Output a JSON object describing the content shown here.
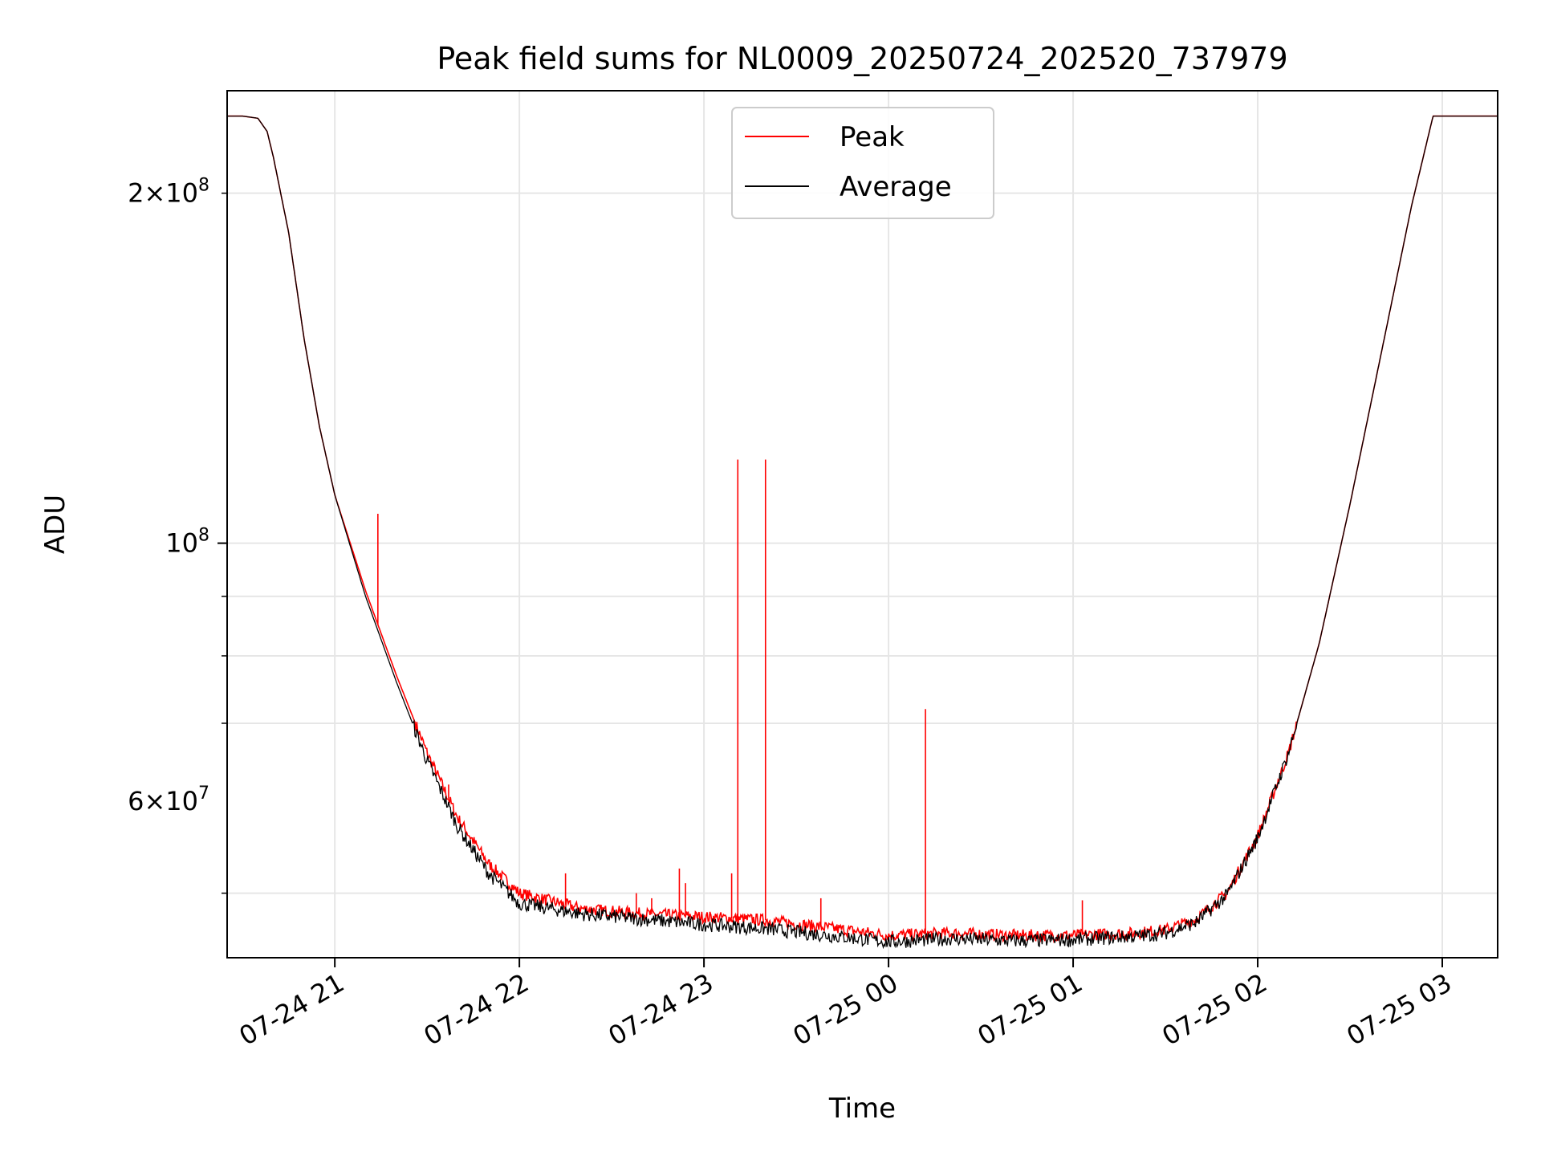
{
  "chart_data": {
    "type": "line",
    "title": "Peak field sums for NL0009_20250724_202520_737979",
    "xlabel": "Time",
    "ylabel": "ADU",
    "y_scale": "log",
    "ylim": [
      44000000,
      245000000
    ],
    "xlim": [
      "2025-07-24 20:25",
      "2025-07-25 03:18"
    ],
    "grid": true,
    "legend_position": "upper center",
    "x_ticks": [
      {
        "value": "2025-07-24 21:00",
        "label": "07-24 21"
      },
      {
        "value": "2025-07-24 22:00",
        "label": "07-24 22"
      },
      {
        "value": "2025-07-24 23:00",
        "label": "07-24 23"
      },
      {
        "value": "2025-07-25 00:00",
        "label": "07-25 00"
      },
      {
        "value": "2025-07-25 01:00",
        "label": "07-25 01"
      },
      {
        "value": "2025-07-25 02:00",
        "label": "07-25 02"
      },
      {
        "value": "2025-07-25 03:00",
        "label": "07-25 03"
      }
    ],
    "y_major_ticks": [
      {
        "value": 100000000,
        "mantissa": "",
        "base": "10",
        "exponent": "8"
      }
    ],
    "y_minor_labeled_ticks": [
      {
        "value": 60000000,
        "mantissa": "6",
        "base": "10",
        "exponent": "7"
      },
      {
        "value": 200000000,
        "mantissa": "2",
        "base": "10",
        "exponent": "8"
      }
    ],
    "y_minor_ticks": [
      50000000,
      70000000,
      80000000,
      90000000,
      200000000
    ],
    "series": [
      {
        "name": "Peak",
        "color": "#ff0000",
        "x": [
          "2025-07-24 20:25",
          "2025-07-24 20:30",
          "2025-07-24 20:35",
          "2025-07-24 20:38",
          "2025-07-24 20:40",
          "2025-07-24 20:45",
          "2025-07-24 20:50",
          "2025-07-24 20:55",
          "2025-07-24 21:00",
          "2025-07-24 21:10",
          "2025-07-24 21:20",
          "2025-07-24 21:30",
          "2025-07-24 21:40",
          "2025-07-24 21:50",
          "2025-07-24 22:00",
          "2025-07-24 22:20",
          "2025-07-24 22:40",
          "2025-07-24 23:00",
          "2025-07-24 23:20",
          "2025-07-24 23:40",
          "2025-07-25 00:00",
          "2025-07-25 00:20",
          "2025-07-25 00:40",
          "2025-07-25 01:00",
          "2025-07-25 01:20",
          "2025-07-25 01:30",
          "2025-07-25 01:40",
          "2025-07-25 01:50",
          "2025-07-25 02:00",
          "2025-07-25 02:10",
          "2025-07-25 02:20",
          "2025-07-25 02:30",
          "2025-07-25 02:40",
          "2025-07-25 02:50",
          "2025-07-25 02:57",
          "2025-07-25 03:18"
        ],
        "y": [
          233000000,
          233000000,
          232000000,
          226000000,
          215000000,
          185000000,
          150000000,
          126000000,
          110000000,
          91000000,
          77000000,
          66000000,
          58000000,
          53000000,
          50000000,
          48500000,
          48000000,
          47700000,
          47400000,
          46700000,
          46000000,
          46200000,
          46000000,
          46000000,
          46200000,
          46500000,
          47500000,
          50000000,
          56000000,
          66000000,
          82000000,
          108000000,
          145000000,
          195000000,
          233000000,
          233000000
        ]
      },
      {
        "name": "Average",
        "color": "#000000",
        "x": [
          "2025-07-24 20:25",
          "2025-07-24 20:30",
          "2025-07-24 20:35",
          "2025-07-24 20:38",
          "2025-07-24 20:40",
          "2025-07-24 20:45",
          "2025-07-24 20:50",
          "2025-07-24 20:55",
          "2025-07-24 21:00",
          "2025-07-24 21:10",
          "2025-07-24 21:20",
          "2025-07-24 21:30",
          "2025-07-24 21:40",
          "2025-07-24 21:50",
          "2025-07-24 22:00",
          "2025-07-24 22:20",
          "2025-07-24 22:40",
          "2025-07-24 23:00",
          "2025-07-24 23:20",
          "2025-07-24 23:40",
          "2025-07-25 00:00",
          "2025-07-25 00:20",
          "2025-07-25 00:40",
          "2025-07-25 01:00",
          "2025-07-25 01:20",
          "2025-07-25 01:30",
          "2025-07-25 01:40",
          "2025-07-25 01:50",
          "2025-07-25 02:00",
          "2025-07-25 02:10",
          "2025-07-25 02:20",
          "2025-07-25 02:30",
          "2025-07-25 02:40",
          "2025-07-25 02:50",
          "2025-07-25 02:57",
          "2025-07-25 03:18"
        ],
        "y": [
          233000000,
          233000000,
          232000000,
          226000000,
          215000000,
          185000000,
          150000000,
          126000000,
          110000000,
          90000000,
          76000000,
          65000000,
          57000000,
          52000000,
          49000000,
          48000000,
          47500000,
          47000000,
          46600000,
          46000000,
          45400000,
          45700000,
          45500000,
          45600000,
          45900000,
          46200000,
          47200000,
          49800000,
          55800000,
          66000000,
          82000000,
          108000000,
          145000000,
          195000000,
          233000000,
          233000000
        ]
      }
    ],
    "spikes": [
      {
        "x": "2025-07-24 21:14",
        "y": 106000000
      },
      {
        "x": "2025-07-24 21:37",
        "y": 62000000
      },
      {
        "x": "2025-07-24 22:15",
        "y": 52000000
      },
      {
        "x": "2025-07-24 22:38",
        "y": 50000000
      },
      {
        "x": "2025-07-24 22:43",
        "y": 49500000
      },
      {
        "x": "2025-07-24 22:52",
        "y": 52500000
      },
      {
        "x": "2025-07-24 22:54",
        "y": 51000000
      },
      {
        "x": "2025-07-24 23:09",
        "y": 52000000
      },
      {
        "x": "2025-07-24 23:11",
        "y": 118000000
      },
      {
        "x": "2025-07-24 23:20",
        "y": 118000000
      },
      {
        "x": "2025-07-24 23:38",
        "y": 49500000
      },
      {
        "x": "2025-07-25 00:12",
        "y": 72000000
      },
      {
        "x": "2025-07-25 01:03",
        "y": 49300000
      }
    ]
  }
}
